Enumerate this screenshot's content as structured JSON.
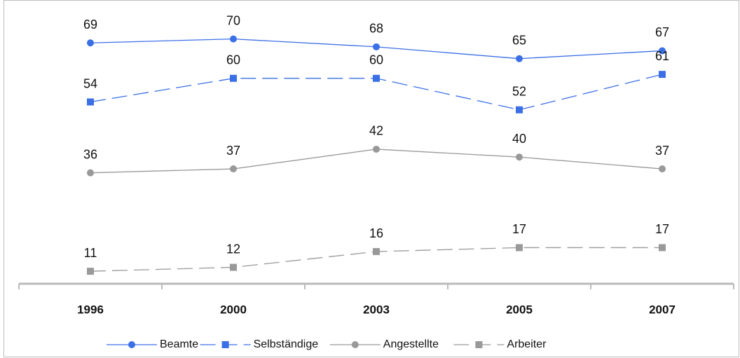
{
  "chart_data": {
    "type": "line",
    "categories": [
      "1996",
      "2000",
      "2003",
      "2005",
      "2007"
    ],
    "series": [
      {
        "name": "Beamte",
        "color": "#3b6fe6",
        "marker": "circle",
        "dash": false,
        "values": [
          69,
          70,
          68,
          65,
          67
        ]
      },
      {
        "name": "Selbständige",
        "color": "#3b6fe6",
        "marker": "square",
        "dash": true,
        "values": [
          54,
          60,
          60,
          52,
          61
        ]
      },
      {
        "name": "Angestellte",
        "color": "#999999",
        "marker": "circle",
        "dash": false,
        "values": [
          36,
          37,
          42,
          40,
          37
        ]
      },
      {
        "name": "Arbeiter",
        "color": "#999999",
        "marker": "square",
        "dash": true,
        "values": [
          11,
          12,
          16,
          17,
          17
        ]
      }
    ],
    "legend": "bottom"
  }
}
